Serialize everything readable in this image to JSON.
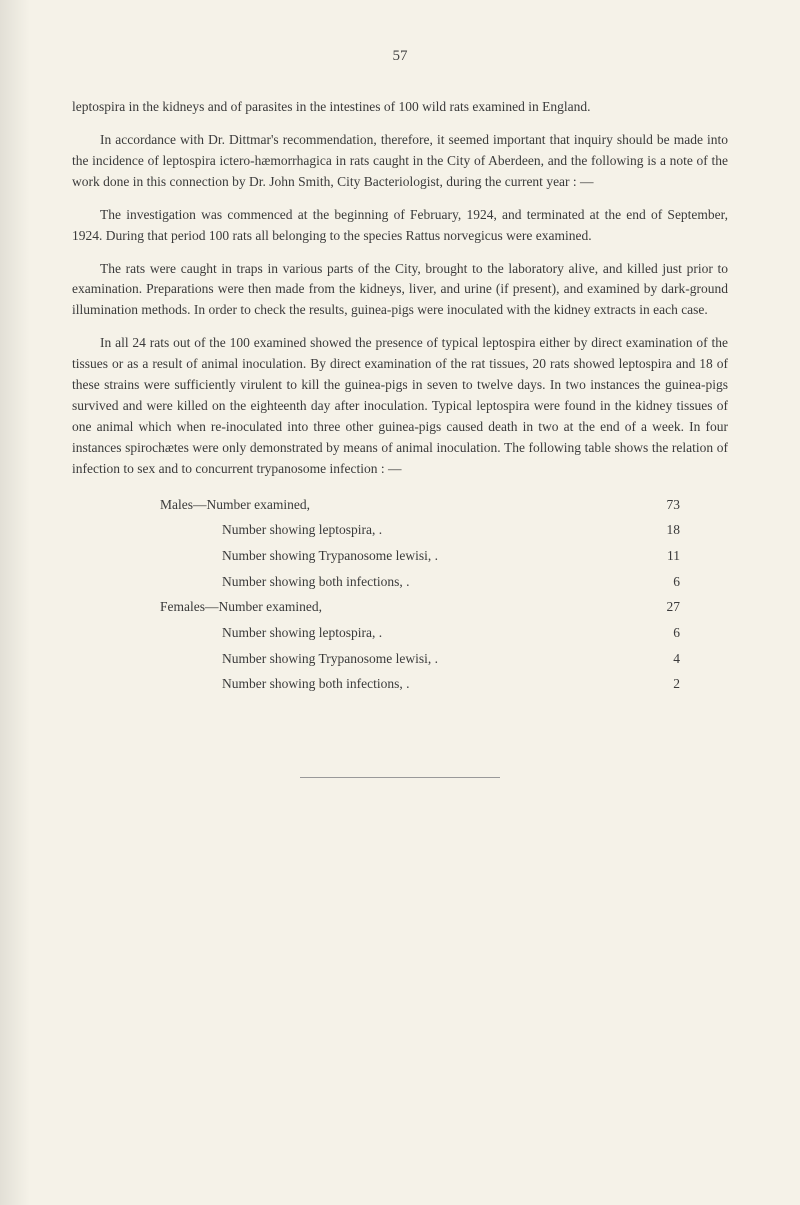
{
  "pageNumber": "57",
  "paragraphs": [
    "leptospira in the kidneys and of parasites in the intestines of 100 wild rats examined in England.",
    "In accordance with Dr. Dittmar's recommendation, therefore, it seemed important that inquiry should be made into the incidence of leptospira ictero-hæmorrhagica in rats caught in the City of Aberdeen, and the following is a note of the work done in this connection by Dr. John Smith, City Bacteriologist, during the current year : —",
    "The investigation was commenced at the beginning of February, 1924, and terminated at the end of September, 1924. During that period 100 rats all belonging to the species Rattus norvegicus were examined.",
    "The rats were caught in traps in various parts of the City, brought to the laboratory alive, and killed just prior to examination. Preparations were then made from the kidneys, liver, and urine (if present), and examined by dark-ground illumination methods. In order to check the results, guinea-pigs were inoculated with the kidney extracts in each case.",
    "In all 24 rats out of the 100 examined showed the presence of typical leptospira either by direct examination of the tissues or as a result of animal inoculation. By direct examination of the rat tissues, 20 rats showed leptospira and 18 of these strains were sufficiently virulent to kill the guinea-pigs in seven to twelve days. In two instances the guinea-pigs survived and were killed on the eighteenth day after inoculation. Typical leptospira were found in the kidney tissues of one animal which when re-inoculated into three other guinea-pigs caused death in two at the end of a week. In four instances spirochætes were only demonstrated by means of animal inoculation. The following table shows the relation of infection to sex and to concurrent trypanosome infection : —"
  ],
  "statistics": {
    "males": {
      "label": "Males—Number examined,",
      "value": "73",
      "items": [
        {
          "label": "Number showing leptospira, .",
          "value": "18"
        },
        {
          "label": "Number showing Trypanosome lewisi, .",
          "value": "11"
        },
        {
          "label": "Number showing both infections, .",
          "value": "6"
        }
      ]
    },
    "females": {
      "label": "Females—Number examined,",
      "value": "27",
      "items": [
        {
          "label": "Number showing leptospira, .",
          "value": "6"
        },
        {
          "label": "Number showing Trypanosome lewisi, .",
          "value": "4"
        },
        {
          "label": "Number showing both infections, .",
          "value": "2"
        }
      ]
    }
  }
}
